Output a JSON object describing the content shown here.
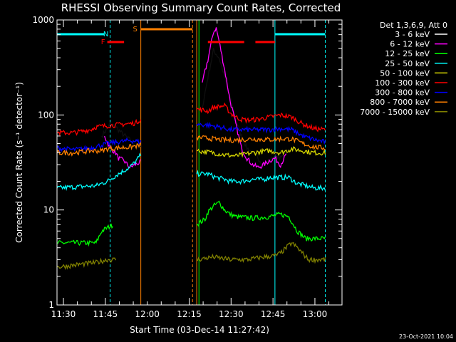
{
  "chart_data": {
    "type": "line",
    "title": "RHESSI Observing Summary Count Rates, Corrected",
    "xlabel": "Start Time (03-Dec-14 11:27:42)",
    "ylabel": "Corrected Count Rate (s⁻¹ detector⁻¹)",
    "y_scale": "log",
    "ylim": [
      1,
      1000
    ],
    "xlim_minutes_after_start": [
      0,
      102
    ],
    "x_tick_labels": [
      "11:30",
      "11:45",
      "12:00",
      "12:15",
      "12:30",
      "12:45",
      "13:00"
    ],
    "y_tick_labels": [
      "1",
      "10",
      "100",
      "1000"
    ],
    "timestamp": "23-Oct-2021 10:04",
    "legend_header": "Det 1,3,6,9, Att 0",
    "legend_placement": "right",
    "markers": [
      {
        "label": "N",
        "color": "#00ffff",
        "start": 0,
        "end": 18
      },
      {
        "label": "F",
        "color": "#ff0000",
        "start": 18,
        "end": 24
      },
      {
        "label": "S",
        "color": "#ff8000",
        "start": 30,
        "end": 48.5
      }
    ],
    "series": [
      {
        "name": "3 - 6 keV",
        "color": "#000000",
        "points": [
          [
            0,
            null
          ],
          [
            16,
            60
          ],
          [
            19,
            80
          ],
          [
            21,
            75
          ],
          [
            23,
            65
          ],
          [
            26,
            55
          ],
          [
            29,
            45
          ],
          [
            30,
            45
          ],
          [
            50,
            null
          ],
          [
            52,
            120
          ],
          [
            54,
            250
          ],
          [
            56,
            480
          ],
          [
            58,
            400
          ],
          [
            60,
            250
          ],
          [
            62,
            150
          ],
          [
            64,
            90
          ],
          [
            66,
            60
          ],
          [
            68,
            45
          ],
          [
            70,
            40
          ],
          [
            72,
            35
          ],
          [
            74,
            30
          ],
          [
            76,
            32
          ],
          [
            78,
            38
          ],
          [
            80,
            35
          ],
          [
            81,
            38
          ]
        ]
      },
      {
        "name": "6 - 12 keV",
        "color": "#ff00ff",
        "points": [
          [
            0,
            null
          ],
          [
            17,
            60
          ],
          [
            19,
            45
          ],
          [
            21,
            40
          ],
          [
            22,
            35
          ],
          [
            24,
            33
          ],
          [
            26,
            28
          ],
          [
            28,
            30
          ],
          [
            30,
            32
          ],
          [
            50,
            null
          ],
          [
            52,
            220
          ],
          [
            54,
            380
          ],
          [
            56,
            750
          ],
          [
            57,
            820
          ],
          [
            58,
            600
          ],
          [
            60,
            300
          ],
          [
            62,
            140
          ],
          [
            64,
            80
          ],
          [
            66,
            45
          ],
          [
            68,
            35
          ],
          [
            70,
            30
          ],
          [
            72,
            28
          ],
          [
            74,
            30
          ],
          [
            76,
            33
          ],
          [
            78,
            35
          ],
          [
            80,
            30
          ],
          [
            82,
            38
          ]
        ]
      },
      {
        "name": "12 - 25 keV",
        "color": "#00ff00",
        "points": [
          [
            0,
            4.5
          ],
          [
            14,
            4.5
          ],
          [
            16,
            6
          ],
          [
            18,
            6.5
          ],
          [
            20,
            7
          ],
          [
            21,
            null
          ],
          [
            50,
            7
          ],
          [
            53,
            8
          ],
          [
            54,
            9.5
          ],
          [
            56,
            11
          ],
          [
            58,
            12
          ],
          [
            60,
            10
          ],
          [
            62,
            9
          ],
          [
            64,
            8.5
          ],
          [
            70,
            8.2
          ],
          [
            76,
            8.5
          ],
          [
            80,
            9
          ],
          [
            83,
            8.5
          ],
          [
            86,
            6
          ],
          [
            89,
            5
          ],
          [
            96,
            5
          ]
        ]
      },
      {
        "name": "25 - 50 keV",
        "color": "#00ffff",
        "points": [
          [
            0,
            17
          ],
          [
            14,
            18
          ],
          [
            16,
            19
          ],
          [
            18,
            20
          ],
          [
            20,
            22
          ],
          [
            22,
            24
          ],
          [
            24,
            26
          ],
          [
            26,
            28
          ],
          [
            28,
            32
          ],
          [
            30,
            38
          ],
          [
            31,
            null
          ],
          [
            50,
            24
          ],
          [
            54,
            24
          ],
          [
            57,
            22
          ],
          [
            60,
            21
          ],
          [
            62,
            20
          ],
          [
            66,
            20
          ],
          [
            70,
            21
          ],
          [
            74,
            21
          ],
          [
            76,
            22
          ],
          [
            80,
            22
          ],
          [
            83,
            22
          ],
          [
            86,
            19
          ],
          [
            89,
            18
          ],
          [
            92,
            17
          ],
          [
            96,
            17
          ]
        ]
      },
      {
        "name": "50 - 100 keV",
        "color": "#d4d400",
        "points": [
          [
            0,
            null
          ],
          [
            50,
            42
          ],
          [
            56,
            40
          ],
          [
            60,
            38
          ],
          [
            64,
            37
          ],
          [
            70,
            40
          ],
          [
            76,
            42
          ],
          [
            80,
            40
          ],
          [
            84,
            44
          ],
          [
            88,
            42
          ],
          [
            92,
            40
          ],
          [
            96,
            40
          ]
        ]
      },
      {
        "name": "100 - 300 keV",
        "color": "#ff0000",
        "points": [
          [
            0,
            65
          ],
          [
            6,
            65
          ],
          [
            12,
            70
          ],
          [
            14,
            75
          ],
          [
            20,
            78
          ],
          [
            24,
            80
          ],
          [
            28,
            82
          ],
          [
            30,
            90
          ],
          [
            31,
            null
          ],
          [
            50,
            115
          ],
          [
            54,
            110
          ],
          [
            56,
            120
          ],
          [
            60,
            125
          ],
          [
            62,
            105
          ],
          [
            64,
            95
          ],
          [
            66,
            90
          ],
          [
            68,
            88
          ],
          [
            72,
            90
          ],
          [
            76,
            95
          ],
          [
            80,
            100
          ],
          [
            84,
            95
          ],
          [
            88,
            80
          ],
          [
            92,
            72
          ],
          [
            96,
            70
          ]
        ]
      },
      {
        "name": "300 - 800 keV",
        "color": "#0000ff",
        "points": [
          [
            0,
            45
          ],
          [
            6,
            43
          ],
          [
            12,
            45
          ],
          [
            18,
            50
          ],
          [
            22,
            52
          ],
          [
            26,
            54
          ],
          [
            30,
            52
          ],
          [
            31,
            null
          ],
          [
            50,
            80
          ],
          [
            54,
            78
          ],
          [
            58,
            75
          ],
          [
            62,
            70
          ],
          [
            66,
            70
          ],
          [
            70,
            70
          ],
          [
            76,
            70
          ],
          [
            80,
            72
          ],
          [
            84,
            70
          ],
          [
            88,
            60
          ],
          [
            92,
            55
          ],
          [
            96,
            52
          ]
        ]
      },
      {
        "name": "800 - 7000 keV",
        "color": "#ff8000",
        "points": [
          [
            0,
            40
          ],
          [
            6,
            40
          ],
          [
            12,
            42
          ],
          [
            16,
            42
          ],
          [
            18,
            44
          ],
          [
            22,
            45
          ],
          [
            26,
            46
          ],
          [
            30,
            48
          ],
          [
            31,
            null
          ],
          [
            50,
            58
          ],
          [
            54,
            57
          ],
          [
            58,
            55
          ],
          [
            62,
            54
          ],
          [
            66,
            55
          ],
          [
            70,
            56
          ],
          [
            76,
            55
          ],
          [
            80,
            56
          ],
          [
            84,
            56
          ],
          [
            88,
            50
          ],
          [
            92,
            46
          ],
          [
            96,
            45
          ]
        ]
      },
      {
        "name": "7000 - 15000 keV",
        "color": "#808000",
        "points": [
          [
            0,
            2.5
          ],
          [
            14,
            2.8
          ],
          [
            18,
            3
          ],
          [
            21,
            3
          ],
          [
            22,
            null
          ],
          [
            50,
            3
          ],
          [
            56,
            3.2
          ],
          [
            62,
            3
          ],
          [
            68,
            3
          ],
          [
            74,
            3.2
          ],
          [
            78,
            3.3
          ],
          [
            80,
            3.5
          ],
          [
            82,
            4
          ],
          [
            84,
            4.5
          ],
          [
            86,
            4
          ],
          [
            90,
            3
          ],
          [
            96,
            3
          ]
        ]
      }
    ]
  }
}
